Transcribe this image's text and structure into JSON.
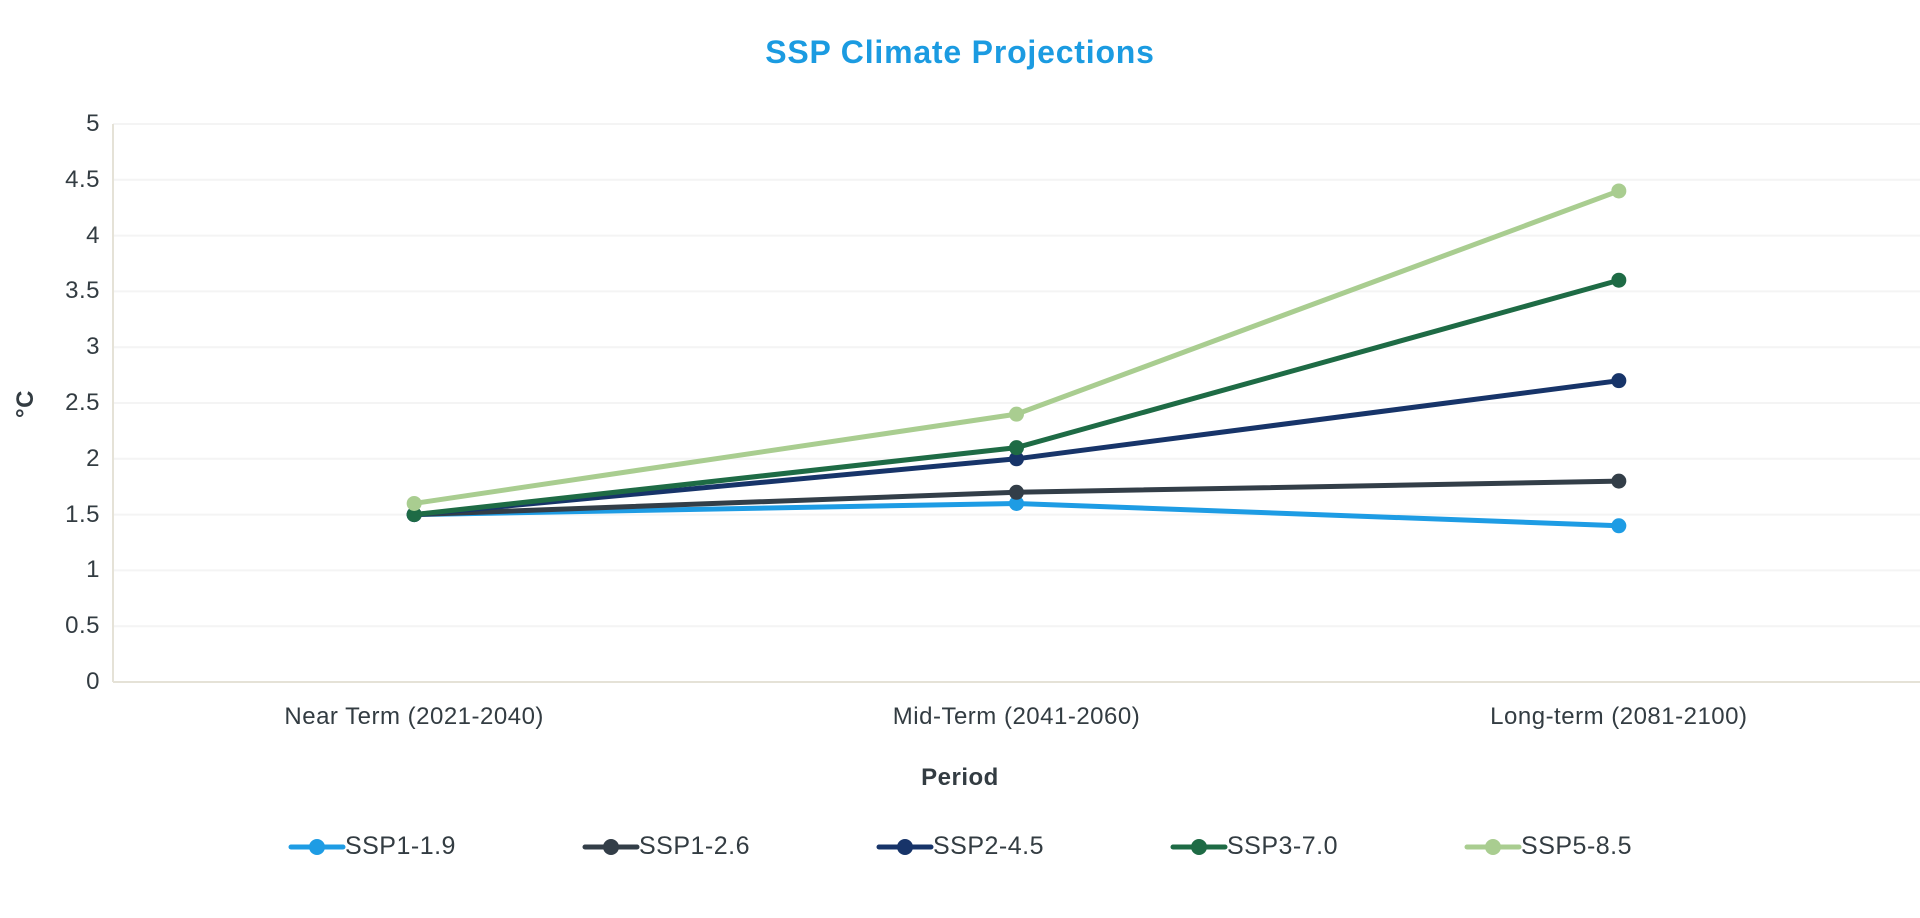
{
  "chart_data": {
    "type": "line",
    "title": "SSP Climate Projections",
    "xlabel": "Period",
    "ylabel": "°C",
    "categories": [
      "Near Term (2021-2040)",
      "Mid-Term (2041-2060)",
      "Long-term (2081-2100)"
    ],
    "series": [
      {
        "name": "SSP1-1.9",
        "color": "#1e9ce4",
        "values": [
          1.5,
          1.6,
          1.4
        ]
      },
      {
        "name": "SSP1-2.6",
        "color": "#333e48",
        "values": [
          1.5,
          1.7,
          1.8
        ]
      },
      {
        "name": "SSP2-4.5",
        "color": "#173469",
        "values": [
          1.5,
          2.0,
          2.7
        ]
      },
      {
        "name": "SSP3-7.0",
        "color": "#1e6b45",
        "values": [
          1.5,
          2.1,
          3.6
        ]
      },
      {
        "name": "SSP5-8.5",
        "color": "#a9cd90",
        "values": [
          1.6,
          2.4,
          4.4
        ]
      }
    ],
    "ylim": [
      0,
      5
    ],
    "ytick_step": 0.5,
    "yticks": [
      "0",
      "0.5",
      "1",
      "1.5",
      "2",
      "2.5",
      "3",
      "3.5",
      "4",
      "4.5",
      "5"
    ],
    "grid": "horizontal",
    "legend_position": "bottom",
    "colors": {
      "title": "#1b9be1",
      "text": "#333c42",
      "gridline": "#f4f4f4",
      "axis_line": "#e5e2d7"
    }
  }
}
